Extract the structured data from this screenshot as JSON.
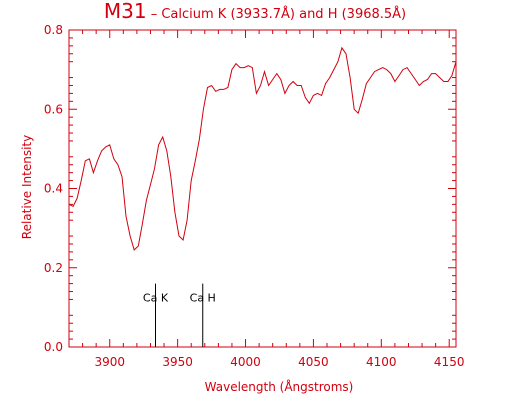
{
  "colors": {
    "axis": "#d2000f",
    "line": "#d2000f",
    "marker": "#000000",
    "background": "#ffffff"
  },
  "chart_data": {
    "type": "line",
    "title": "M31",
    "subtitle": " – Calcium K (3933.7Å) and H (3968.5Å)",
    "xlabel": "Wavelength (Ångstroms)",
    "ylabel": "Relative Intensity",
    "xlim": [
      3870,
      3155
    ],
    "ylim": [
      0.0,
      0.8
    ],
    "xticks": [
      3900,
      3950,
      4000,
      4050,
      4100,
      4150
    ],
    "xtick_labels": [
      "3900",
      "3950",
      "4000",
      "4050",
      "4100",
      "4150"
    ],
    "yticks": [
      0.0,
      0.2,
      0.4,
      0.6,
      0.8
    ],
    "ytick_labels": [
      "0.0",
      "0.2",
      "0.4",
      "0.6",
      "0.8"
    ],
    "grid": false,
    "series": [
      {
        "x": [
          3870,
          3873,
          3876,
          3879,
          3882,
          3885,
          3888,
          3891,
          3894,
          3897,
          3900,
          3903,
          3906,
          3909,
          3912,
          3915,
          3918,
          3921,
          3924,
          3927,
          3930,
          3933,
          3936,
          3939,
          3942,
          3945,
          3948,
          3951,
          3954,
          3957,
          3960,
          3963,
          3966,
          3969,
          3972,
          3975,
          3978,
          3981,
          3984,
          3987,
          3990,
          3993,
          3996,
          3999,
          4002,
          4005,
          4008,
          4011,
          4014,
          4017,
          4020,
          4023,
          4026,
          4029,
          4032,
          4035,
          4038,
          4041,
          4044,
          4047,
          4050,
          4053,
          4056,
          4059,
          4062,
          4065,
          4068,
          4071,
          4074,
          4077,
          4080,
          4083,
          4086,
          4089,
          4092,
          4095,
          4098,
          4101,
          4104,
          4107,
          4110,
          4113,
          4116,
          4119,
          4122,
          4125,
          4128,
          4131,
          4134,
          4137,
          4140,
          4143,
          4146,
          4149,
          4152,
          4155
        ],
        "values": [
          0.36,
          0.355,
          0.375,
          0.42,
          0.47,
          0.475,
          0.44,
          0.47,
          0.495,
          0.505,
          0.51,
          0.475,
          0.46,
          0.43,
          0.33,
          0.28,
          0.245,
          0.255,
          0.31,
          0.37,
          0.41,
          0.45,
          0.51,
          0.53,
          0.495,
          0.43,
          0.34,
          0.28,
          0.27,
          0.32,
          0.42,
          0.47,
          0.525,
          0.6,
          0.655,
          0.66,
          0.645,
          0.65,
          0.65,
          0.655,
          0.7,
          0.715,
          0.705,
          0.705,
          0.71,
          0.705,
          0.64,
          0.66,
          0.695,
          0.66,
          0.675,
          0.69,
          0.675,
          0.64,
          0.66,
          0.67,
          0.66,
          0.66,
          0.63,
          0.615,
          0.635,
          0.64,
          0.635,
          0.665,
          0.68,
          0.7,
          0.72,
          0.755,
          0.74,
          0.68,
          0.6,
          0.59,
          0.625,
          0.665,
          0.68,
          0.695,
          0.7,
          0.705,
          0.7,
          0.69,
          0.67,
          0.685,
          0.7,
          0.705,
          0.69,
          0.675,
          0.66,
          0.67,
          0.675,
          0.69,
          0.69,
          0.68,
          0.67,
          0.67,
          0.685,
          0.72
        ]
      }
    ],
    "markers": [
      {
        "x": 3933.7,
        "label": "Ca K",
        "top": 0.16
      },
      {
        "x": 3968.5,
        "label": "Ca H",
        "top": 0.16
      }
    ]
  }
}
